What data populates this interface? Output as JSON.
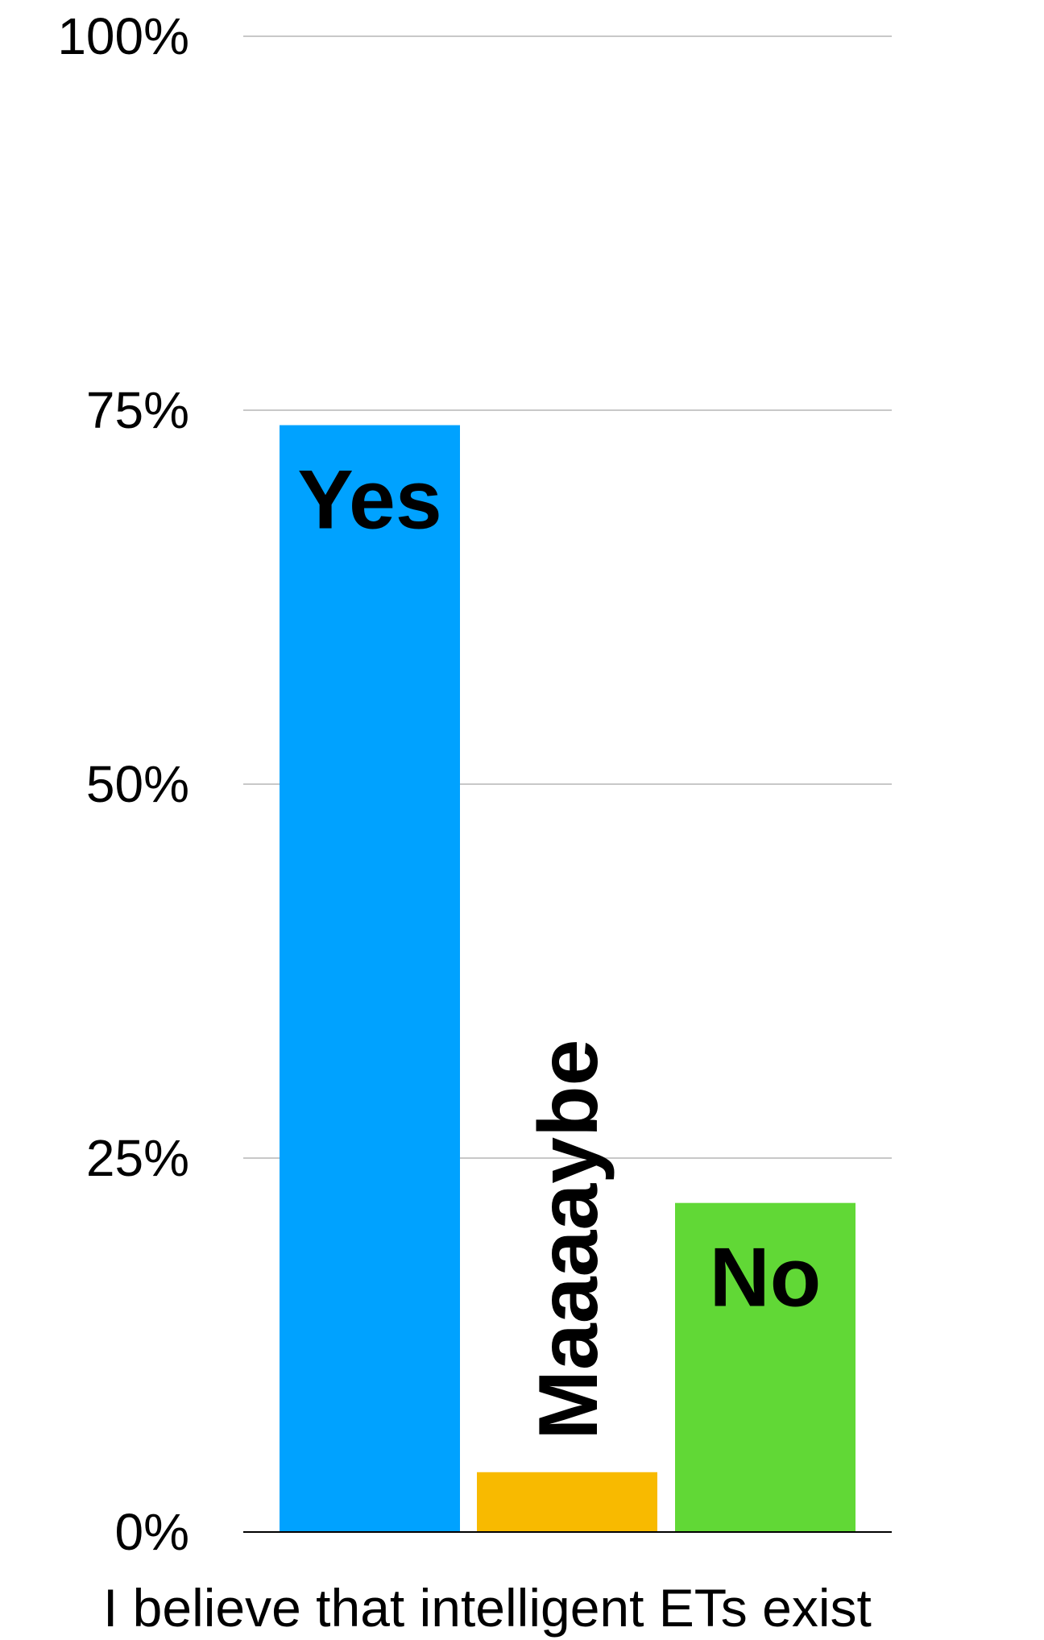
{
  "chart_data": {
    "type": "bar",
    "title": "",
    "xlabel": "I believe that intelligent ETs exist",
    "ylabel": "",
    "ylim": [
      0,
      100
    ],
    "grid": true,
    "legend": "none",
    "yticks": [
      "0%",
      "25%",
      "50%",
      "75%",
      "100%"
    ],
    "categories": [
      "Yes",
      "Maaaaybe",
      "No"
    ],
    "values": [
      74,
      4,
      22
    ],
    "colors": [
      "#00a2ff",
      "#f8ba00",
      "#61d836"
    ]
  }
}
